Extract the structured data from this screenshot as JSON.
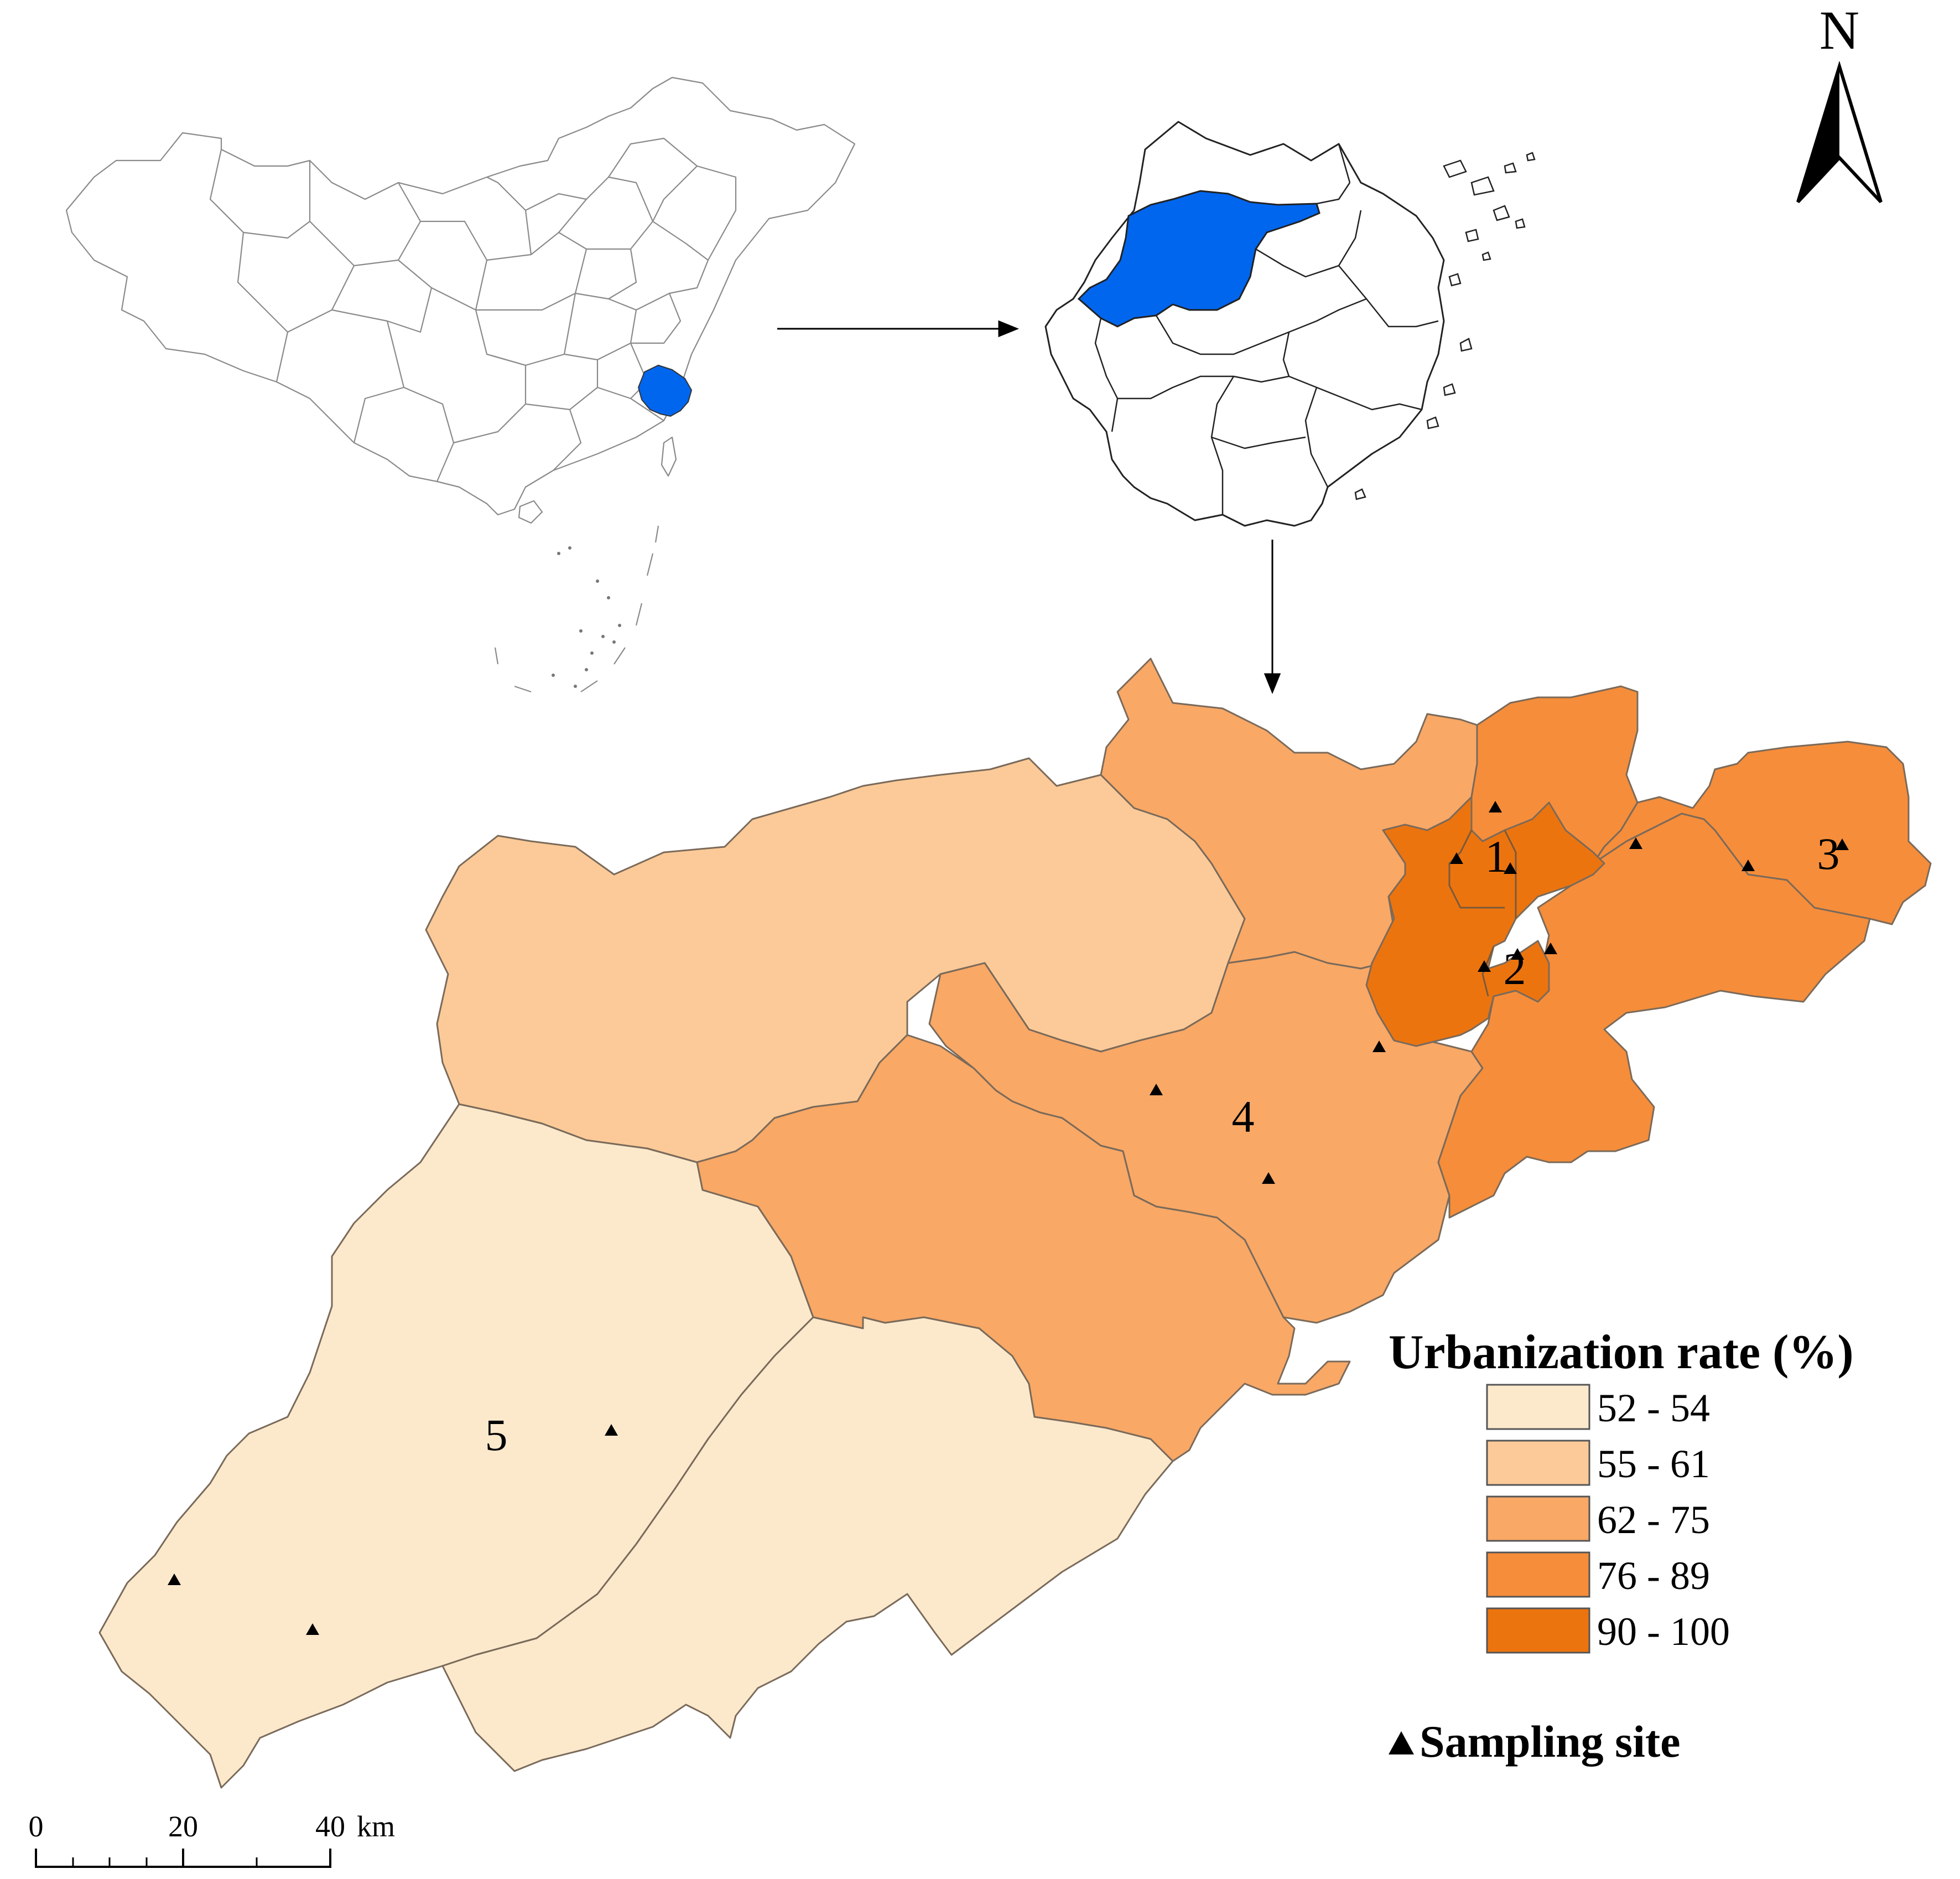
{
  "north_arrow": {
    "label": "N"
  },
  "legend": {
    "title": "Urbanization rate (%)",
    "classes": [
      {
        "label": "52 - 54",
        "color": "#fce9cc"
      },
      {
        "label": "55 - 61",
        "color": "#fcca98"
      },
      {
        "label": "62 - 75",
        "color": "#f9a866"
      },
      {
        "label": "76 - 89",
        "color": "#f68d3a"
      },
      {
        "label": "90 - 100",
        "color": "#ec740f"
      }
    ],
    "site_label": "Sampling site"
  },
  "highlight_color": "#0066ee",
  "region_labels": {
    "r1": "1",
    "r2": "2",
    "r3": "3",
    "r4": "4",
    "r5": "5"
  },
  "scale_bar": {
    "ticks": [
      "0",
      "20",
      "40"
    ],
    "unit": "km"
  }
}
